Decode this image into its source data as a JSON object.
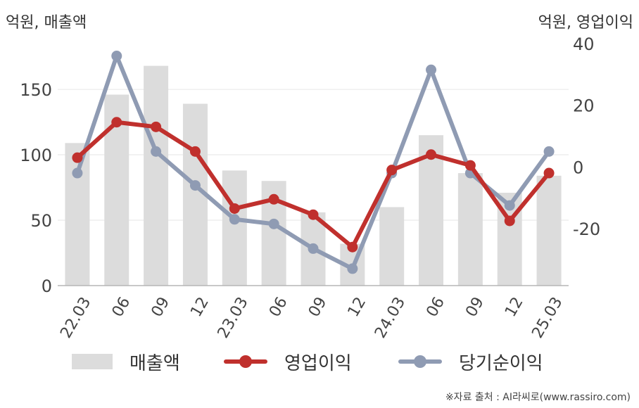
{
  "header": {
    "left_unit": "억원, 매출액",
    "right_unit": "억원, 영업이익"
  },
  "source": "※자료 출처 : AI라씨로(www.rassiro.com)",
  "colors": {
    "revenue": "#dcdcdc",
    "operating_profit": "#c0302d",
    "net_income": "#8f9bb3"
  },
  "chart_data": {
    "type": "bar+line",
    "categories": [
      "22.03",
      "06",
      "09",
      "12",
      "23.03",
      "06",
      "09",
      "12",
      "24.03",
      "06",
      "09",
      "12",
      "25.03"
    ],
    "left_axis": {
      "ticks": [
        0,
        50,
        100,
        150
      ],
      "ylim": [
        0,
        185
      ]
    },
    "right_axis": {
      "ticks": [
        -20,
        0,
        20,
        40
      ],
      "ylim": [
        -38.5,
        40
      ]
    },
    "series": [
      {
        "name": "매출액",
        "type": "bar",
        "axis": "left",
        "values": [
          109,
          146,
          168,
          139,
          88,
          80,
          56,
          32,
          60,
          115,
          86,
          71,
          84
        ]
      },
      {
        "name": "영업이익",
        "type": "line",
        "axis": "right",
        "values": [
          3,
          14.5,
          13,
          5,
          -13.5,
          -10.5,
          -15.5,
          -26,
          -1,
          4,
          0.5,
          -17.5,
          -2
        ]
      },
      {
        "name": "당기순이익",
        "type": "line",
        "axis": "right",
        "values": [
          -2,
          36,
          5,
          -6,
          -17,
          -18.5,
          -26.5,
          -33,
          -2,
          31.5,
          -2,
          -12.5,
          5
        ]
      }
    ],
    "grid": true,
    "legend": "bottom"
  }
}
